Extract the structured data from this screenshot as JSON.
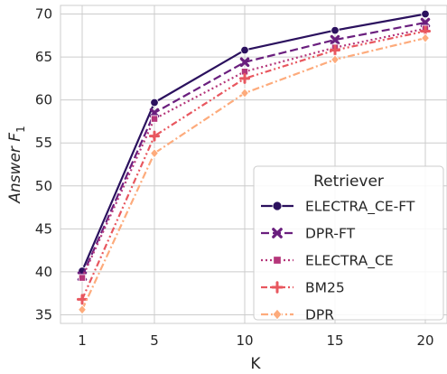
{
  "chart_data": {
    "type": "line",
    "x": [
      1,
      5,
      10,
      15,
      20
    ],
    "xlabel": "K",
    "ylabel": "Answer F",
    "ylabel_subscript": "1",
    "xticks": [
      "1",
      "5",
      "10",
      "15",
      "20"
    ],
    "yticks": [
      "35",
      "40",
      "45",
      "50",
      "55",
      "60",
      "65",
      "70"
    ],
    "ylim": [
      34,
      71
    ],
    "grid": true,
    "legend": {
      "title": "Retriever",
      "placement": "lower-right"
    },
    "series": [
      {
        "name": "ELECTRA_CE-FT",
        "values": [
          40.1,
          59.7,
          65.8,
          68.1,
          70.0
        ],
        "color": "#2b115e",
        "dash": "solid",
        "marker": "circle"
      },
      {
        "name": "DPR-FT",
        "values": [
          39.5,
          58.5,
          64.4,
          67.0,
          69.0
        ],
        "color": "#6a1f7e",
        "dash": "long-dash",
        "marker": "x"
      },
      {
        "name": "ELECTRA_CE",
        "values": [
          39.3,
          57.8,
          63.3,
          66.1,
          68.3
        ],
        "color": "#b5367a",
        "dash": "dotted",
        "marker": "square"
      },
      {
        "name": "BM25",
        "values": [
          36.8,
          55.8,
          62.5,
          65.8,
          68.0
        ],
        "color": "#e8575f",
        "dash": "dash-dot-dot",
        "marker": "plus"
      },
      {
        "name": "DPR",
        "values": [
          35.6,
          53.8,
          60.8,
          64.7,
          67.2
        ],
        "color": "#fdab7c",
        "dash": "dash-dot",
        "marker": "diamond"
      }
    ]
  }
}
